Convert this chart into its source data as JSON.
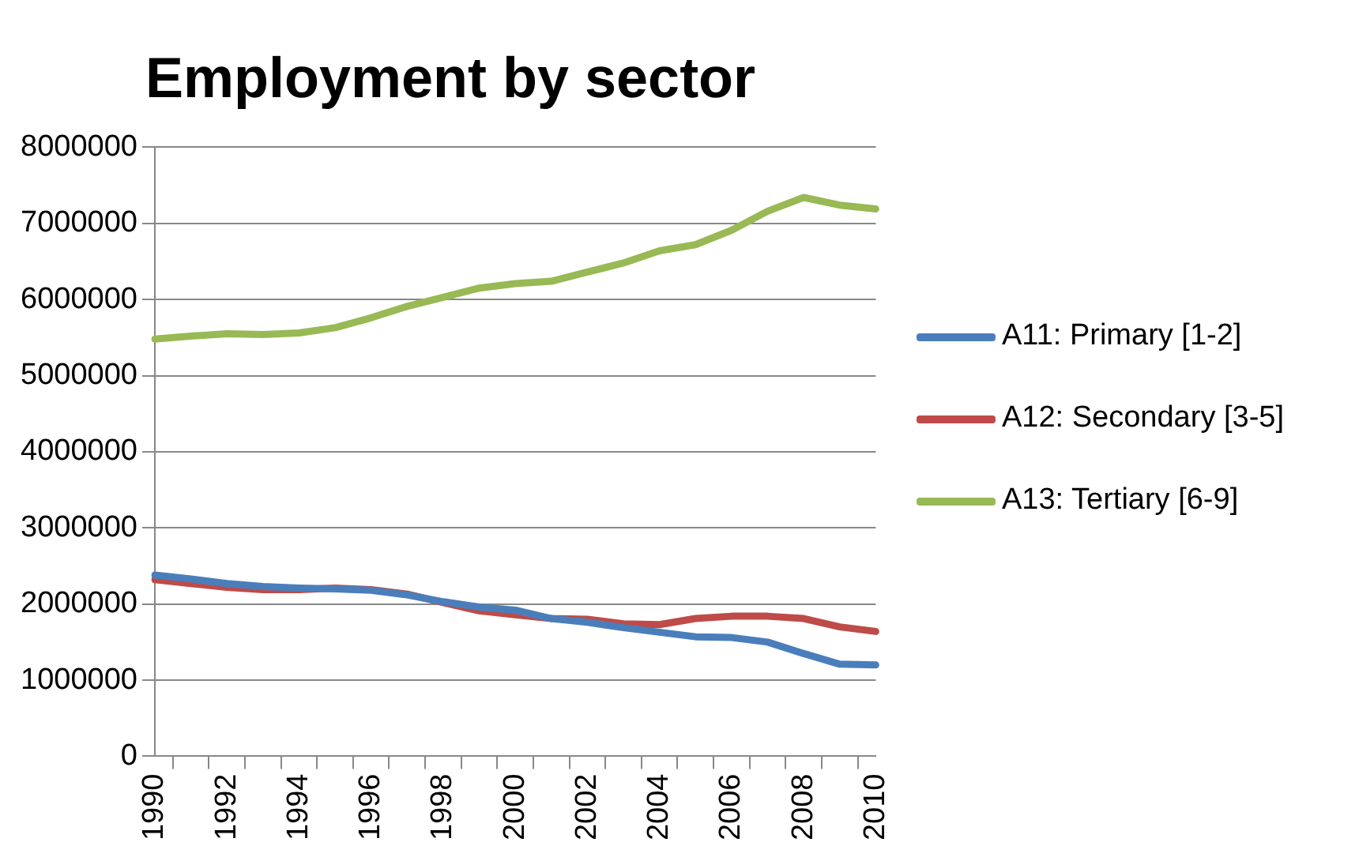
{
  "chart_data": {
    "type": "line",
    "title": "Employment by sector",
    "categories": [
      "1990",
      null,
      "1992",
      null,
      "1994",
      null,
      "1996",
      null,
      "1998",
      null,
      "2000",
      null,
      "2002",
      null,
      "2004",
      null,
      "2006",
      null,
      "2008",
      null,
      "2010"
    ],
    "series": [
      {
        "name": "A11: Primary [1-2]",
        "color": "#4a7ebb",
        "values": [
          2380000,
          2330000,
          2270000,
          2230000,
          2210000,
          2200000,
          2180000,
          2120000,
          2030000,
          1960000,
          1920000,
          1810000,
          1760000,
          1690000,
          1630000,
          1570000,
          1560000,
          1500000,
          1350000,
          1210000,
          1200000
        ]
      },
      {
        "name": "A12: Secondary [3-5]",
        "color": "#be4b48",
        "values": [
          2320000,
          2270000,
          2220000,
          2190000,
          2190000,
          2210000,
          2190000,
          2130000,
          2020000,
          1910000,
          1860000,
          1810000,
          1800000,
          1740000,
          1730000,
          1810000,
          1840000,
          1840000,
          1810000,
          1700000,
          1640000
        ]
      },
      {
        "name": "A13: Tertiary [6-9]",
        "color": "#98b954",
        "values": [
          5480000,
          5520000,
          5550000,
          5540000,
          5560000,
          5630000,
          5760000,
          5910000,
          6030000,
          6150000,
          6210000,
          6240000,
          6360000,
          6480000,
          6640000,
          6720000,
          6910000,
          7160000,
          7340000,
          7240000,
          7190000
        ]
      }
    ],
    "ylim": [
      0,
      8000000
    ],
    "yticks": [
      0,
      1000000,
      2000000,
      3000000,
      4000000,
      5000000,
      6000000,
      7000000,
      8000000
    ],
    "grid": "y",
    "legend": "right",
    "marker": "none",
    "line_style": "solid"
  }
}
